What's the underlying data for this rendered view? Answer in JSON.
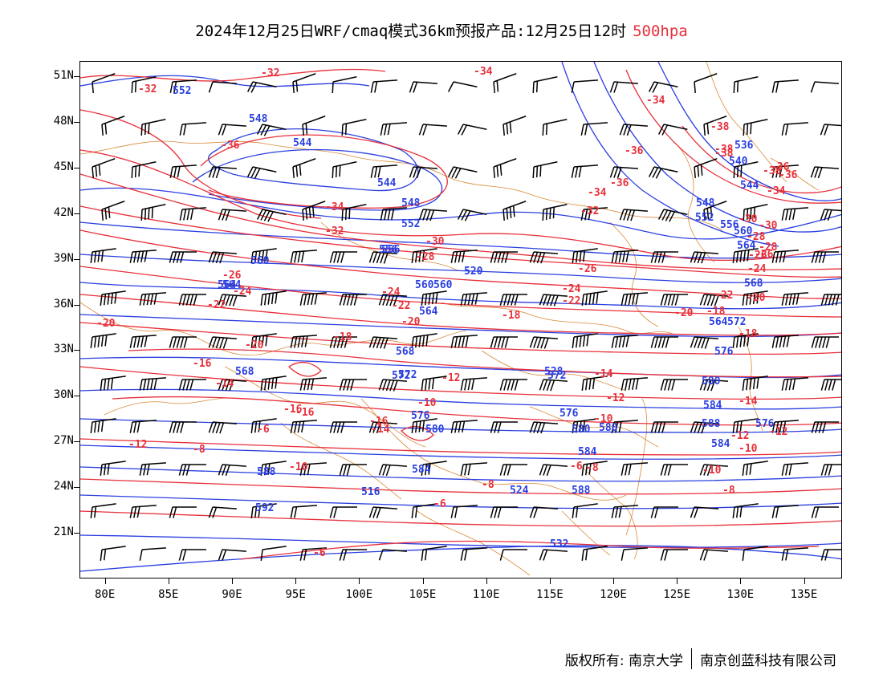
{
  "title": {
    "main": "2024年12月25日WRF/cmaq模式36km预报产品:12月25日12时",
    "level": "500hpa",
    "level_color": "#e8303a"
  },
  "map": {
    "lat_ticks": [
      "51N",
      "48N",
      "45N",
      "42N",
      "39N",
      "36N",
      "33N",
      "30N",
      "27N",
      "24N",
      "21N"
    ],
    "lon_ticks": [
      "80E",
      "85E",
      "90E",
      "95E",
      "100E",
      "105E",
      "110E",
      "115E",
      "120E",
      "125E",
      "130E",
      "135E"
    ],
    "lat_range": [
      18,
      52
    ],
    "lon_range": [
      78,
      138
    ],
    "colors": {
      "height": "#2a3fe0",
      "temperature": "#e8303a",
      "border": "#d98a3a",
      "wind": "#000000"
    },
    "height_labels": [
      "552",
      "548",
      "544",
      "544",
      "548",
      "552",
      "556",
      "560",
      "564",
      "568",
      "572",
      "576",
      "580",
      "584",
      "588",
      "592",
      "516",
      "520",
      "524",
      "528",
      "532",
      "536",
      "540",
      "544",
      "548",
      "552",
      "556",
      "560",
      "564",
      "568",
      "572",
      "576",
      "580",
      "584",
      "588",
      "560",
      "564",
      "568",
      "572",
      "576",
      "580",
      "584",
      "588",
      "564",
      "584",
      "572",
      "580",
      "576",
      "556",
      "560",
      "564"
    ],
    "temperature_labels": [
      "-32",
      "-32",
      "-34",
      "-34",
      "-36",
      "-36",
      "-38",
      "-38",
      "-38",
      "-36",
      "-36",
      "-34",
      "-34",
      "-32",
      "-32",
      "-30",
      "-30",
      "-28",
      "-28",
      "-26",
      "-26",
      "-26",
      "-24",
      "-24",
      "-24",
      "-22",
      "-22",
      "-22",
      "-20",
      "-20",
      "-20",
      "-20",
      "-18",
      "-18",
      "-18",
      "-16",
      "-16",
      "-16",
      "-16",
      "-14",
      "-14",
      "-14",
      "-14",
      "-12",
      "-12",
      "-12",
      "-12",
      "-12",
      "-10",
      "-10",
      "-10",
      "-10",
      "-10",
      "-8",
      "-8",
      "-8",
      "-8",
      "-6",
      "-6",
      "-6",
      "-6",
      "-18",
      "-20",
      "-22",
      "-24",
      "-26",
      "-28",
      "-30",
      "-34",
      "-36",
      "-38"
    ]
  },
  "footer": {
    "left": "版权所有: 南京大学",
    "right": "南京创蓝科技有限公司"
  }
}
